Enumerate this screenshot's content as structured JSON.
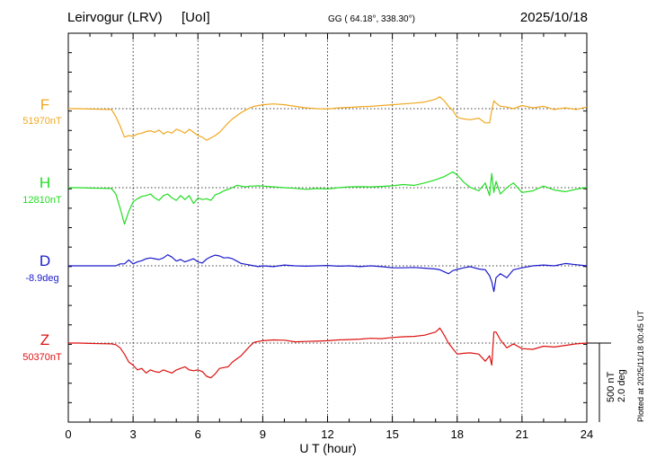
{
  "header": {
    "station": "Leirvogur (LRV)",
    "institute": "[UoI]",
    "coords": "GG ( 64.18°, 338.30°)",
    "date": "2025/10/18"
  },
  "footer": {
    "plotted": "Plotted at 2025/11/18 00:45 UT"
  },
  "chart_data": {
    "type": "line",
    "xlabel": "U T (hour)",
    "xlim": [
      0,
      24
    ],
    "x_ticks": [
      "0",
      "3",
      "6",
      "9",
      "12",
      "15",
      "18",
      "21",
      "24"
    ],
    "scale": {
      "nT_label": "500 nT",
      "deg_label": "2.0 deg"
    },
    "x": [
      0,
      0.5,
      1,
      1.5,
      2,
      2.2,
      2.4,
      2.6,
      2.8,
      3,
      3.2,
      3.4,
      3.6,
      3.8,
      4,
      4.2,
      4.4,
      4.6,
      4.8,
      5,
      5.2,
      5.4,
      5.6,
      5.8,
      6,
      6.2,
      6.4,
      6.6,
      6.8,
      7,
      7.2,
      7.4,
      7.6,
      7.8,
      8,
      8.2,
      8.4,
      8.6,
      8.8,
      9,
      9.5,
      10,
      10.5,
      11,
      11.5,
      12,
      12.5,
      13,
      13.5,
      14,
      14.5,
      15,
      15.5,
      16,
      16.5,
      17,
      17.2,
      17.4,
      17.6,
      17.8,
      18,
      18.3,
      18.6,
      19,
      19.3,
      19.5,
      19.6,
      19.7,
      19.8,
      20,
      20.3,
      20.6,
      21,
      21.5,
      22,
      22.5,
      23,
      23.5,
      24
    ],
    "series": [
      {
        "name": "F",
        "label": "F",
        "baseline_label": "51970nT",
        "color": "#f0a820",
        "values": [
          51970,
          51970,
          51968,
          51966,
          51965,
          51920,
          51860,
          51790,
          51800,
          51795,
          51810,
          51815,
          51825,
          51830,
          51820,
          51835,
          51810,
          51825,
          51815,
          51840,
          51830,
          51815,
          51840,
          51820,
          51800,
          51790,
          51770,
          51785,
          51800,
          51820,
          51850,
          51880,
          51905,
          51925,
          51945,
          51960,
          51975,
          51985,
          51990,
          51995,
          52000,
          51995,
          51985,
          51975,
          51970,
          51968,
          51975,
          51978,
          51982,
          51985,
          51990,
          51995,
          52000,
          52005,
          52012,
          52030,
          52045,
          52020,
          51985,
          51960,
          51915,
          51905,
          51900,
          51910,
          51880,
          51880,
          51960,
          52020,
          52005,
          51985,
          51980,
          51970,
          51990,
          51975,
          51985,
          51965,
          51975,
          51965,
          51980
        ]
      },
      {
        "name": "H",
        "label": "H",
        "baseline_label": "12810nT",
        "color": "#22dd22",
        "values": [
          12810,
          12810,
          12808,
          12806,
          12805,
          12770,
          12680,
          12580,
          12660,
          12720,
          12740,
          12755,
          12760,
          12770,
          12745,
          12730,
          12760,
          12770,
          12745,
          12730,
          12760,
          12735,
          12760,
          12710,
          12745,
          12735,
          12740,
          12730,
          12765,
          12775,
          12790,
          12800,
          12810,
          12825,
          12820,
          12815,
          12820,
          12820,
          12822,
          12820,
          12815,
          12810,
          12806,
          12800,
          12805,
          12802,
          12810,
          12815,
          12816,
          12815,
          12818,
          12822,
          12830,
          12825,
          12840,
          12860,
          12870,
          12880,
          12895,
          12910,
          12890,
          12845,
          12812,
          12790,
          12840,
          12760,
          12900,
          12780,
          12850,
          12770,
          12810,
          12840,
          12780,
          12790,
          12820,
          12795,
          12785,
          12800,
          12812
        ]
      },
      {
        "name": "D",
        "label": "D",
        "baseline_label": "-8.9deg",
        "color": "#1a1acc",
        "values": [
          -8.9,
          -8.9,
          -8.9,
          -8.9,
          -8.9,
          -8.9,
          -8.85,
          -8.85,
          -8.75,
          -8.85,
          -8.8,
          -8.77,
          -8.72,
          -8.7,
          -8.72,
          -8.74,
          -8.7,
          -8.62,
          -8.68,
          -8.78,
          -8.74,
          -8.8,
          -8.76,
          -8.72,
          -8.8,
          -8.83,
          -8.73,
          -8.67,
          -8.63,
          -8.65,
          -8.7,
          -8.69,
          -8.72,
          -8.78,
          -8.84,
          -8.86,
          -8.88,
          -8.9,
          -8.92,
          -8.9,
          -8.92,
          -8.88,
          -8.9,
          -8.91,
          -8.9,
          -8.89,
          -8.91,
          -8.9,
          -8.92,
          -8.9,
          -8.92,
          -8.95,
          -8.95,
          -8.94,
          -8.96,
          -8.98,
          -9.0,
          -9.05,
          -9.1,
          -9.02,
          -8.99,
          -8.95,
          -8.92,
          -8.98,
          -9.0,
          -9.15,
          -9.3,
          -9.55,
          -9.2,
          -9.1,
          -9.2,
          -9.0,
          -8.95,
          -8.9,
          -8.88,
          -8.9,
          -8.84,
          -8.87,
          -8.9
        ]
      },
      {
        "name": "Z",
        "label": "Z",
        "baseline_label": "50370nT",
        "color": "#dd1111",
        "values": [
          50370,
          50370,
          50368,
          50366,
          50365,
          50360,
          50340,
          50300,
          50250,
          50230,
          50200,
          50210,
          50180,
          50200,
          50190,
          50185,
          50200,
          50190,
          50180,
          50200,
          50210,
          50220,
          50200,
          50195,
          50200,
          50190,
          50160,
          50150,
          50175,
          50210,
          50215,
          50220,
          50250,
          50270,
          50290,
          50320,
          50350,
          50375,
          50380,
          50385,
          50390,
          50388,
          50378,
          50380,
          50382,
          50385,
          50390,
          50392,
          50395,
          50400,
          50398,
          50405,
          50410,
          50412,
          50420,
          50440,
          50465,
          50420,
          50370,
          50335,
          50300,
          50305,
          50308,
          50300,
          50255,
          50290,
          50230,
          50440,
          50440,
          50390,
          50340,
          50365,
          50335,
          50330,
          50350,
          50345,
          50355,
          50365,
          50370
        ]
      }
    ]
  }
}
